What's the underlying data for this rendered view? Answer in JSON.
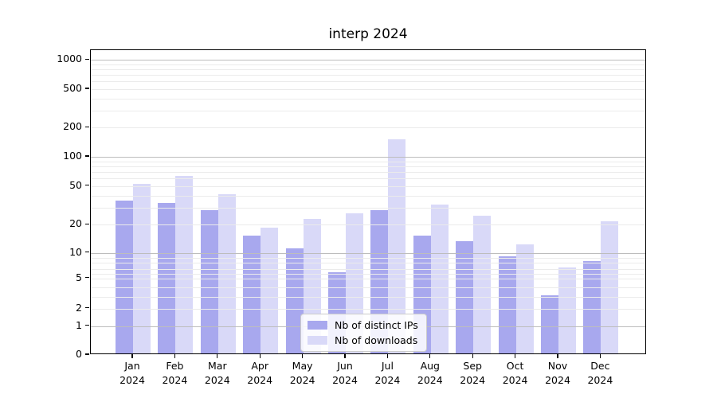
{
  "chart_data": {
    "type": "bar",
    "title": "interp 2024",
    "categories": [
      "Jan 2024",
      "Feb 2024",
      "Mar 2024",
      "Apr 2024",
      "May 2024",
      "Jun 2024",
      "Jul 2024",
      "Aug 2024",
      "Sep 2024",
      "Oct 2024",
      "Nov 2024",
      "Dec 2024"
    ],
    "series": [
      {
        "name": "Nb of distinct IPs",
        "color": "#a8a8ee",
        "values": [
          34,
          32,
          27,
          15,
          11,
          6,
          27,
          15,
          13,
          9,
          3,
          8
        ]
      },
      {
        "name": "Nb of downloads",
        "color": "#d9d9f8",
        "values": [
          51,
          61,
          40,
          18,
          22,
          25,
          145,
          31,
          24,
          12,
          7,
          21
        ]
      }
    ],
    "y_axis": {
      "scale": "symlog",
      "tick_labels": [
        "0",
        "1",
        "2",
        "5",
        "10",
        "20",
        "50",
        "100",
        "200",
        "500",
        "1000"
      ],
      "tick_values": [
        0,
        1,
        2,
        5,
        10,
        20,
        50,
        100,
        200,
        500,
        1000
      ]
    },
    "grid": {
      "major_lines": [
        1,
        10,
        100,
        1000
      ],
      "minor_lines": [
        2,
        3,
        4,
        5,
        6,
        7,
        8,
        9,
        20,
        30,
        40,
        50,
        60,
        70,
        80,
        90,
        200,
        300,
        400,
        500,
        600,
        700,
        800,
        900
      ]
    },
    "legend": {
      "position": "lower center",
      "entries": [
        "Nb of distinct IPs",
        "Nb of downloads"
      ]
    }
  }
}
